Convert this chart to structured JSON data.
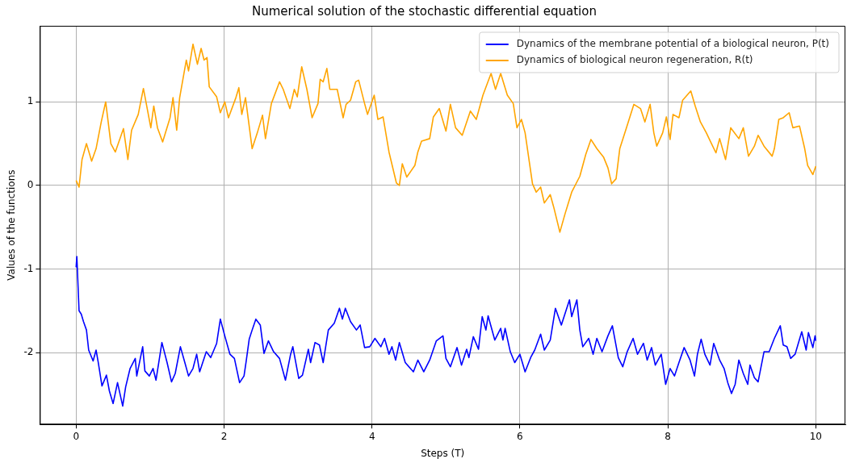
{
  "chart_data": {
    "type": "line",
    "title": "Numerical solution of the stochastic differential equation",
    "xlabel": "Steps (T)",
    "ylabel": "Values of the functions",
    "xlim": [
      -0.49,
      10.4
    ],
    "ylim": [
      -2.86,
      1.91
    ],
    "xticks": [
      0,
      2,
      4,
      6,
      8,
      10
    ],
    "yticks": [
      -2,
      -1,
      0,
      1
    ],
    "grid": true,
    "legend": "top right",
    "marker": "none",
    "line_style": "solid",
    "series": [
      {
        "name": "Dynamics of the membrane potential of a biological neuron, P(t)",
        "color": "#0000ff",
        "x": [
          0,
          0.01,
          0.04,
          0.07,
          0.1,
          0.14,
          0.17,
          0.23,
          0.27,
          0.3,
          0.35,
          0.41,
          0.45,
          0.5,
          0.56,
          0.63,
          0.67,
          0.73,
          0.8,
          0.82,
          0.9,
          0.93,
          0.99,
          1.04,
          1.08,
          1.16,
          1.23,
          1.29,
          1.34,
          1.41,
          1.47,
          1.52,
          1.58,
          1.63,
          1.67,
          1.76,
          1.82,
          1.9,
          1.95,
          2.01,
          2.08,
          2.14,
          2.21,
          2.27,
          2.3,
          2.34,
          2.38,
          2.43,
          2.49,
          2.54,
          2.6,
          2.67,
          2.75,
          2.83,
          2.9,
          2.93,
          3.01,
          3.06,
          3.14,
          3.17,
          3.23,
          3.29,
          3.34,
          3.41,
          3.49,
          3.56,
          3.6,
          3.64,
          3.71,
          3.79,
          3.84,
          3.9,
          3.97,
          4.04,
          4.12,
          4.17,
          4.23,
          4.27,
          4.32,
          4.37,
          4.45,
          4.56,
          4.62,
          4.7,
          4.78,
          4.87,
          4.96,
          5.0,
          5.06,
          5.15,
          5.21,
          5.28,
          5.31,
          5.37,
          5.44,
          5.49,
          5.54,
          5.57,
          5.66,
          5.74,
          5.77,
          5.8,
          5.87,
          5.93,
          6.0,
          6.07,
          6.15,
          6.2,
          6.28,
          6.33,
          6.41,
          6.48,
          6.56,
          6.67,
          6.7,
          6.77,
          6.81,
          6.85,
          6.93,
          6.99,
          7.04,
          7.11,
          7.19,
          7.25,
          7.33,
          7.39,
          7.45,
          7.53,
          7.59,
          7.67,
          7.72,
          7.78,
          7.83,
          7.91,
          7.97,
          8.03,
          8.09,
          8.15,
          8.22,
          8.3,
          8.36,
          8.4,
          8.45,
          8.5,
          8.57,
          8.62,
          8.7,
          8.76,
          8.81,
          8.86,
          8.91,
          8.96,
          9.02,
          9.08,
          9.11,
          9.17,
          9.22,
          9.3,
          9.37,
          9.44,
          9.52,
          9.56,
          9.61,
          9.66,
          9.72,
          9.81,
          9.87,
          9.9,
          9.96,
          9.99,
          10.0
        ],
        "values": [
          -0.98,
          -0.85,
          -1.5,
          -1.54,
          -1.63,
          -1.73,
          -1.97,
          -2.1,
          -1.97,
          -2.12,
          -2.4,
          -2.27,
          -2.46,
          -2.61,
          -2.36,
          -2.64,
          -2.41,
          -2.19,
          -2.07,
          -2.28,
          -1.93,
          -2.22,
          -2.28,
          -2.19,
          -2.33,
          -1.88,
          -2.12,
          -2.35,
          -2.25,
          -1.93,
          -2.12,
          -2.28,
          -2.19,
          -2.02,
          -2.23,
          -1.99,
          -2.06,
          -1.89,
          -1.6,
          -1.8,
          -2.02,
          -2.07,
          -2.36,
          -2.28,
          -2.1,
          -1.84,
          -1.73,
          -1.6,
          -1.67,
          -2.01,
          -1.86,
          -1.99,
          -2.07,
          -2.33,
          -2.02,
          -1.93,
          -2.31,
          -2.27,
          -1.96,
          -2.12,
          -1.88,
          -1.91,
          -2.12,
          -1.73,
          -1.65,
          -1.47,
          -1.6,
          -1.47,
          -1.63,
          -1.73,
          -1.67,
          -1.94,
          -1.93,
          -1.83,
          -1.93,
          -1.83,
          -2.02,
          -1.93,
          -2.09,
          -1.88,
          -2.12,
          -2.23,
          -2.09,
          -2.23,
          -2.09,
          -1.86,
          -1.8,
          -2.07,
          -2.17,
          -1.94,
          -2.15,
          -1.96,
          -2.06,
          -1.81,
          -1.96,
          -1.57,
          -1.73,
          -1.56,
          -1.85,
          -1.71,
          -1.85,
          -1.71,
          -1.99,
          -2.12,
          -2.02,
          -2.23,
          -2.05,
          -1.97,
          -1.78,
          -1.97,
          -1.85,
          -1.47,
          -1.67,
          -1.37,
          -1.57,
          -1.37,
          -1.73,
          -1.93,
          -1.83,
          -2.02,
          -1.83,
          -1.99,
          -1.8,
          -1.68,
          -2.06,
          -2.17,
          -1.99,
          -1.83,
          -2.02,
          -1.89,
          -2.09,
          -1.94,
          -2.15,
          -2.02,
          -2.38,
          -2.19,
          -2.28,
          -2.12,
          -1.94,
          -2.09,
          -2.28,
          -2.02,
          -1.84,
          -2.02,
          -2.15,
          -1.89,
          -2.09,
          -2.19,
          -2.36,
          -2.49,
          -2.38,
          -2.09,
          -2.25,
          -2.38,
          -2.15,
          -2.3,
          -2.35,
          -1.99,
          -1.99,
          -1.83,
          -1.68,
          -1.91,
          -1.93,
          -2.07,
          -2.02,
          -1.75,
          -1.97,
          -1.76,
          -1.94,
          -1.8,
          -1.86
        ]
      },
      {
        "name": "Dynamics of biological neuron regeneration, R(t)",
        "color": "#ffa500",
        "x": [
          0,
          0.04,
          0.08,
          0.14,
          0.21,
          0.27,
          0.34,
          0.4,
          0.47,
          0.53,
          0.64,
          0.7,
          0.75,
          0.84,
          0.91,
          1.01,
          1.05,
          1.1,
          1.17,
          1.27,
          1.31,
          1.36,
          1.4,
          1.49,
          1.52,
          1.58,
          1.64,
          1.69,
          1.73,
          1.77,
          1.8,
          1.9,
          1.95,
          2.01,
          2.06,
          2.16,
          2.2,
          2.24,
          2.29,
          2.38,
          2.45,
          2.52,
          2.56,
          2.64,
          2.75,
          2.8,
          2.89,
          2.95,
          2.99,
          3.05,
          3.12,
          3.19,
          3.27,
          3.3,
          3.34,
          3.39,
          3.43,
          3.53,
          3.61,
          3.65,
          3.71,
          3.78,
          3.82,
          3.9,
          3.94,
          4.03,
          4.08,
          4.15,
          4.23,
          4.33,
          4.37,
          4.41,
          4.47,
          4.58,
          4.62,
          4.67,
          4.78,
          4.83,
          4.91,
          5.0,
          5.06,
          5.13,
          5.22,
          5.33,
          5.41,
          5.5,
          5.61,
          5.67,
          5.74,
          5.83,
          5.91,
          5.96,
          6.02,
          6.07,
          6.17,
          6.22,
          6.28,
          6.33,
          6.41,
          6.46,
          6.54,
          6.61,
          6.7,
          6.81,
          6.89,
          6.96,
          7.04,
          7.13,
          7.19,
          7.24,
          7.3,
          7.35,
          7.44,
          7.54,
          7.63,
          7.69,
          7.76,
          7.81,
          7.85,
          7.93,
          7.98,
          8.03,
          8.07,
          8.15,
          8.2,
          8.31,
          8.37,
          8.44,
          8.52,
          8.59,
          8.65,
          8.7,
          8.78,
          8.85,
          8.96,
          9.02,
          9.09,
          9.17,
          9.22,
          9.3,
          9.41,
          9.44,
          9.5,
          9.56,
          9.64,
          9.69,
          9.78,
          9.85,
          9.89,
          9.96,
          10.0
        ],
        "values": [
          0.06,
          -0.02,
          0.31,
          0.5,
          0.29,
          0.44,
          0.76,
          1.0,
          0.5,
          0.4,
          0.68,
          0.31,
          0.66,
          0.85,
          1.16,
          0.69,
          0.95,
          0.69,
          0.52,
          0.81,
          1.05,
          0.66,
          1.05,
          1.5,
          1.37,
          1.69,
          1.45,
          1.64,
          1.5,
          1.53,
          1.18,
          1.06,
          0.87,
          1.0,
          0.81,
          1.05,
          1.17,
          0.85,
          1.05,
          0.44,
          0.63,
          0.84,
          0.56,
          0.98,
          1.24,
          1.15,
          0.92,
          1.15,
          1.06,
          1.42,
          1.15,
          0.81,
          0.98,
          1.27,
          1.24,
          1.4,
          1.15,
          1.15,
          0.81,
          0.97,
          1.02,
          1.24,
          1.26,
          0.98,
          0.85,
          1.08,
          0.79,
          0.82,
          0.4,
          0.03,
          0.0,
          0.26,
          0.1,
          0.24,
          0.4,
          0.53,
          0.56,
          0.82,
          0.92,
          0.65,
          0.97,
          0.69,
          0.6,
          0.89,
          0.79,
          1.08,
          1.34,
          1.15,
          1.34,
          1.08,
          0.98,
          0.69,
          0.79,
          0.63,
          0.02,
          -0.08,
          -0.02,
          -0.21,
          -0.11,
          -0.27,
          -0.56,
          -0.34,
          -0.08,
          0.11,
          0.37,
          0.55,
          0.44,
          0.34,
          0.21,
          0.02,
          0.08,
          0.44,
          0.69,
          0.97,
          0.92,
          0.76,
          0.97,
          0.63,
          0.47,
          0.63,
          0.82,
          0.55,
          0.85,
          0.81,
          1.02,
          1.13,
          0.95,
          0.76,
          0.63,
          0.5,
          0.39,
          0.56,
          0.31,
          0.69,
          0.56,
          0.69,
          0.35,
          0.47,
          0.6,
          0.47,
          0.35,
          0.44,
          0.79,
          0.81,
          0.87,
          0.69,
          0.71,
          0.44,
          0.24,
          0.13,
          0.23
        ]
      }
    ]
  }
}
